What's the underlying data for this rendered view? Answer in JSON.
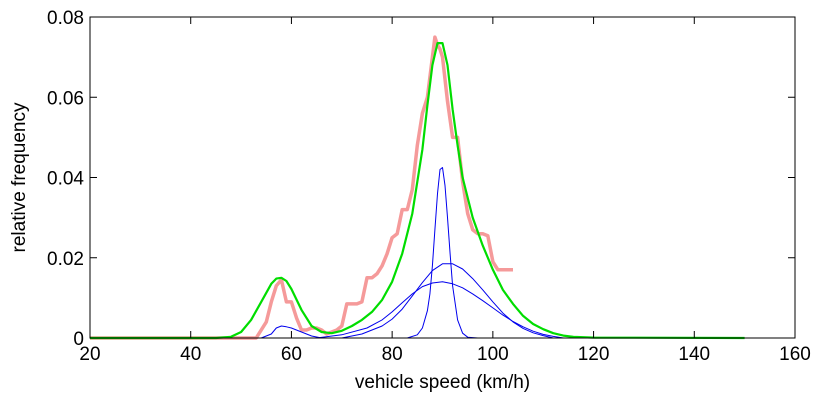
{
  "chart_data": {
    "type": "line",
    "title": "",
    "xlabel": "vehicle speed (km/h)",
    "ylabel": "relative frequency",
    "xlim": [
      20,
      160
    ],
    "ylim": [
      0,
      0.08
    ],
    "xticks": [
      20,
      40,
      60,
      80,
      100,
      120,
      140,
      160
    ],
    "yticks": [
      0,
      0.02,
      0.04,
      0.06,
      0.08
    ],
    "ytick_labels": [
      "0",
      "0.02",
      "0.04",
      "0.06",
      "0.08"
    ],
    "grid": false,
    "legend": "none",
    "series": [
      {
        "color": "#f59a9a",
        "style": "thick",
        "x": [
          20,
          53,
          55,
          56,
          57,
          58,
          59,
          60,
          61,
          62,
          63,
          64,
          65,
          66,
          67,
          68,
          69,
          70,
          71,
          72,
          73,
          74,
          75,
          76,
          77,
          78,
          79,
          80,
          81,
          82,
          83,
          84,
          85,
          86,
          87,
          88,
          88.5,
          89,
          89.5,
          90,
          91,
          92,
          93,
          94,
          95,
          96,
          97,
          98,
          99,
          100,
          101,
          102,
          103,
          104
        ],
        "y": [
          0,
          0,
          0.004,
          0.009,
          0.013,
          0.0145,
          0.009,
          0.009,
          0.005,
          0.002,
          0.002,
          0.0025,
          0.0025,
          0.002,
          0.001,
          0.0015,
          0.002,
          0.003,
          0.0085,
          0.0085,
          0.0085,
          0.009,
          0.015,
          0.015,
          0.016,
          0.018,
          0.021,
          0.025,
          0.026,
          0.032,
          0.032,
          0.037,
          0.048,
          0.056,
          0.06,
          0.07,
          0.075,
          0.073,
          0.072,
          0.07,
          0.059,
          0.05,
          0.05,
          0.039,
          0.031,
          0.027,
          0.026,
          0.026,
          0.0255,
          0.019,
          0.017,
          0.017,
          0.017,
          0.017
        ]
      },
      {
        "color": "#00dd00",
        "style": "medium",
        "x": [
          20,
          45,
          48,
          50,
          52,
          54,
          56,
          57,
          58,
          59,
          60,
          62,
          64,
          66,
          68,
          70,
          72,
          74,
          76,
          78,
          80,
          82,
          84,
          86,
          87,
          88,
          89,
          90,
          91,
          92,
          93,
          94,
          96,
          98,
          100,
          102,
          104,
          106,
          108,
          110,
          112,
          114,
          116,
          120,
          150
        ],
        "y": [
          0,
          0,
          0.0003,
          0.0015,
          0.0045,
          0.009,
          0.0135,
          0.0148,
          0.015,
          0.0142,
          0.0122,
          0.007,
          0.003,
          0.0015,
          0.0012,
          0.0018,
          0.003,
          0.0045,
          0.0065,
          0.0095,
          0.014,
          0.021,
          0.031,
          0.047,
          0.058,
          0.068,
          0.0735,
          0.0735,
          0.068,
          0.057,
          0.048,
          0.04,
          0.03,
          0.023,
          0.017,
          0.012,
          0.0085,
          0.0055,
          0.0035,
          0.0022,
          0.0012,
          0.0006,
          0.0003,
          0.0001,
          0
        ]
      },
      {
        "color": "#0000ee",
        "style": "thin",
        "x": [
          20,
          54,
          56,
          57,
          58,
          59,
          60,
          62,
          64,
          66
        ],
        "y": [
          0,
          0,
          0.001,
          0.0025,
          0.003,
          0.0028,
          0.0025,
          0.0015,
          0.0005,
          0
        ]
      },
      {
        "color": "#0000ee",
        "style": "thin",
        "x": [
          65,
          70,
          75,
          78,
          80,
          82,
          84,
          86,
          88,
          90,
          92,
          94,
          96,
          98,
          100,
          102,
          104,
          106,
          108,
          110,
          112,
          114
        ],
        "y": [
          0,
          0.0008,
          0.0025,
          0.0045,
          0.0065,
          0.0088,
          0.011,
          0.0128,
          0.0137,
          0.014,
          0.0135,
          0.0125,
          0.011,
          0.0093,
          0.0075,
          0.0057,
          0.0041,
          0.0028,
          0.0017,
          0.0009,
          0.0004,
          0
        ]
      },
      {
        "color": "#0000ee",
        "style": "thin",
        "x": [
          70,
          74,
          78,
          80,
          82,
          84,
          86,
          88,
          90,
          92,
          94,
          96,
          98,
          100,
          102,
          104,
          106,
          108,
          110,
          112
        ],
        "y": [
          0,
          0.001,
          0.003,
          0.0047,
          0.0072,
          0.0105,
          0.0138,
          0.0168,
          0.0185,
          0.0185,
          0.0172,
          0.0148,
          0.012,
          0.009,
          0.0062,
          0.004,
          0.0024,
          0.0013,
          0.0006,
          0
        ]
      },
      {
        "color": "#0000ee",
        "style": "thin",
        "x": [
          83,
          85,
          86,
          87,
          87.5,
          88,
          88.5,
          89,
          89.5,
          90,
          90.5,
          91,
          91.5,
          92,
          93,
          94,
          95,
          97
        ],
        "y": [
          0,
          0.0008,
          0.0025,
          0.0068,
          0.011,
          0.018,
          0.027,
          0.036,
          0.042,
          0.0425,
          0.038,
          0.03,
          0.021,
          0.013,
          0.0045,
          0.0012,
          0.0002,
          0
        ]
      }
    ]
  }
}
